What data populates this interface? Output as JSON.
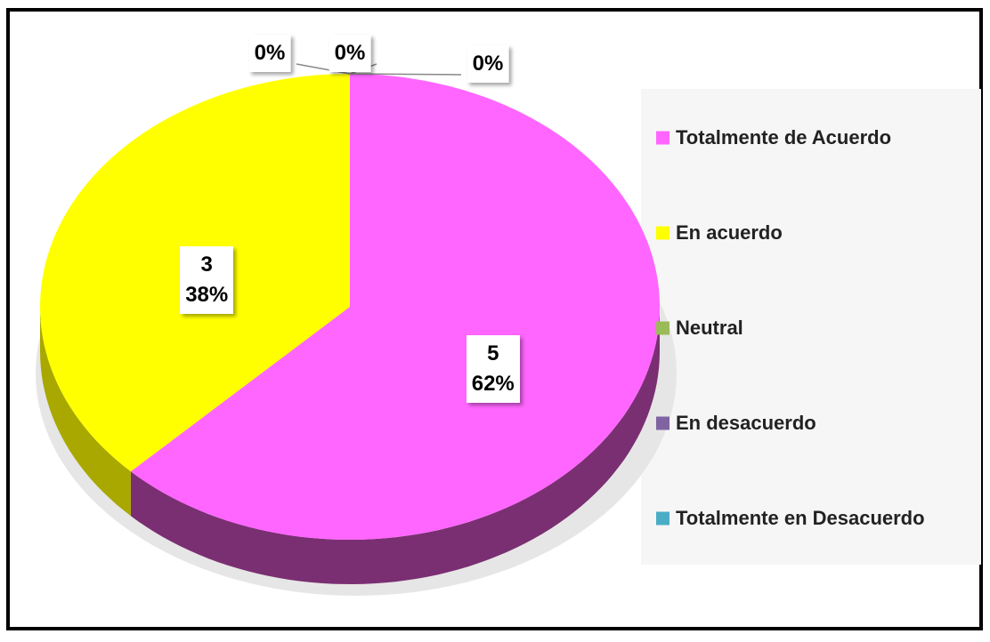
{
  "chart_data": {
    "type": "pie",
    "categories": [
      "Totalmente de Acuerdo",
      "En acuerdo",
      "Neutral",
      "En desacuerdo",
      "Totalmente en Desacuerdo"
    ],
    "values": [
      5,
      3,
      0,
      0,
      0
    ],
    "value_labels": [
      "5\n62%",
      "3\n38%",
      "0%",
      "0%",
      "0%"
    ],
    "colors": [
      "#ff66ff",
      "#ffff00",
      "#9bbb59",
      "#8064a2",
      "#4bacc6"
    ],
    "side_colors": [
      "#7a2f72",
      "#a8a800",
      "#6f8a3a",
      "#5a4575",
      "#2f7f95"
    ],
    "legend": "right"
  }
}
